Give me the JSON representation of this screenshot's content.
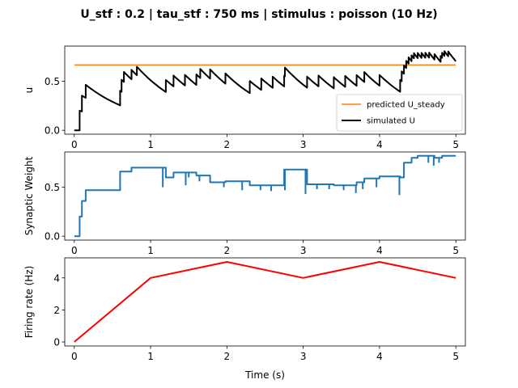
{
  "figure": {
    "title": "U_stf : 0.2 | tau_stf : 750 ms | stimulus : poisson (10 Hz)",
    "xlabel": "Time (s)"
  },
  "chart_data": [
    {
      "type": "line",
      "ylabel": "u",
      "xlim": [
        -0.125,
        5.125
      ],
      "ylim": [
        -0.04,
        0.86
      ],
      "x_ticks": [
        0,
        1,
        2,
        3,
        4,
        5
      ],
      "x_tick_labels": [
        "0",
        "1",
        "2",
        "3",
        "4",
        "5"
      ],
      "y_ticks": [
        0.0,
        0.5
      ],
      "y_tick_labels": [
        "0.0",
        "0.5"
      ],
      "legend": {
        "position": "lower-right"
      },
      "series": [
        {
          "name": "predicted U_steady",
          "color": "#ff7f0e",
          "x": [
            0,
            5
          ],
          "y": [
            0.667,
            0.667
          ]
        },
        {
          "name": "simulated U",
          "color": "#000000",
          "spikes": [
            0.07,
            0.1,
            0.15,
            0.6,
            0.62,
            0.65,
            0.75,
            0.82,
            1.2,
            1.3,
            1.45,
            1.6,
            1.65,
            1.78,
            1.98,
            2.3,
            2.45,
            2.6,
            2.75,
            2.76,
            3.05,
            3.2,
            3.4,
            3.55,
            3.7,
            3.8,
            4.0,
            4.27,
            4.29,
            4.32,
            4.35,
            4.38,
            4.42,
            4.45,
            4.5,
            4.55,
            4.6,
            4.65,
            4.72,
            4.8,
            4.82,
            4.85,
            4.9
          ],
          "U": 0.2,
          "tau": 0.75,
          "t_end": 5.0
        }
      ]
    },
    {
      "type": "line",
      "ylabel": "Synaptic Weight",
      "xlim": [
        -0.125,
        5.125
      ],
      "ylim": [
        -0.04,
        0.86
      ],
      "x_ticks": [
        0,
        1,
        2,
        3,
        4,
        5
      ],
      "x_tick_labels": [
        "0",
        "1",
        "2",
        "3",
        "4",
        "5"
      ],
      "y_ticks": [
        0.0,
        0.5
      ],
      "y_tick_labels": [
        "0.0",
        "0.5"
      ],
      "series": [
        {
          "color": "#1f77b4",
          "steps": [
            [
              0,
              0
            ],
            [
              0.07,
              0.2
            ],
            [
              0.1,
              0.36
            ],
            [
              0.15,
              0.47
            ],
            [
              0.6,
              0.66
            ],
            [
              0.75,
              0.7
            ],
            [
              1.2,
              0.6
            ],
            [
              1.3,
              0.65
            ],
            [
              1.6,
              0.62
            ],
            [
              1.78,
              0.55
            ],
            [
              1.98,
              0.56
            ],
            [
              2.3,
              0.52
            ],
            [
              2.75,
              0.68
            ],
            [
              3.05,
              0.53
            ],
            [
              3.4,
              0.52
            ],
            [
              3.7,
              0.55
            ],
            [
              3.8,
              0.59
            ],
            [
              4.0,
              0.61
            ],
            [
              4.27,
              0.6
            ],
            [
              4.32,
              0.75
            ],
            [
              4.42,
              0.8
            ],
            [
              4.5,
              0.82
            ],
            [
              4.72,
              0.8
            ],
            [
              4.82,
              0.82
            ],
            [
              5.0,
              0.82
            ]
          ],
          "dips": [
            [
              1.16,
              0.5
            ],
            [
              1.46,
              0.52
            ],
            [
              1.5,
              0.6
            ],
            [
              1.64,
              0.56
            ],
            [
              1.96,
              0.5
            ],
            [
              2.2,
              0.47
            ],
            [
              2.44,
              0.47
            ],
            [
              2.58,
              0.46
            ],
            [
              2.76,
              0.47
            ],
            [
              3.03,
              0.43
            ],
            [
              3.18,
              0.48
            ],
            [
              3.34,
              0.48
            ],
            [
              3.53,
              0.47
            ],
            [
              3.69,
              0.44
            ],
            [
              3.78,
              0.48
            ],
            [
              3.96,
              0.5
            ],
            [
              4.26,
              0.42
            ],
            [
              4.64,
              0.75
            ],
            [
              4.71,
              0.72
            ],
            [
              4.78,
              0.75
            ]
          ]
        }
      ]
    },
    {
      "type": "line",
      "ylabel": "Firing rate (Hz)",
      "xlim": [
        -0.125,
        5.125
      ],
      "ylim": [
        -0.25,
        5.25
      ],
      "x_ticks": [
        0,
        1,
        2,
        3,
        4,
        5
      ],
      "x_tick_labels": [
        "0",
        "1",
        "2",
        "3",
        "4",
        "5"
      ],
      "y_ticks": [
        0,
        2,
        4
      ],
      "y_tick_labels": [
        "0",
        "2",
        "4"
      ],
      "series": [
        {
          "color": "#ff0000",
          "x": [
            0,
            1,
            2,
            3,
            4,
            5
          ],
          "y": [
            0,
            4,
            5,
            4,
            5,
            4
          ]
        }
      ]
    }
  ]
}
